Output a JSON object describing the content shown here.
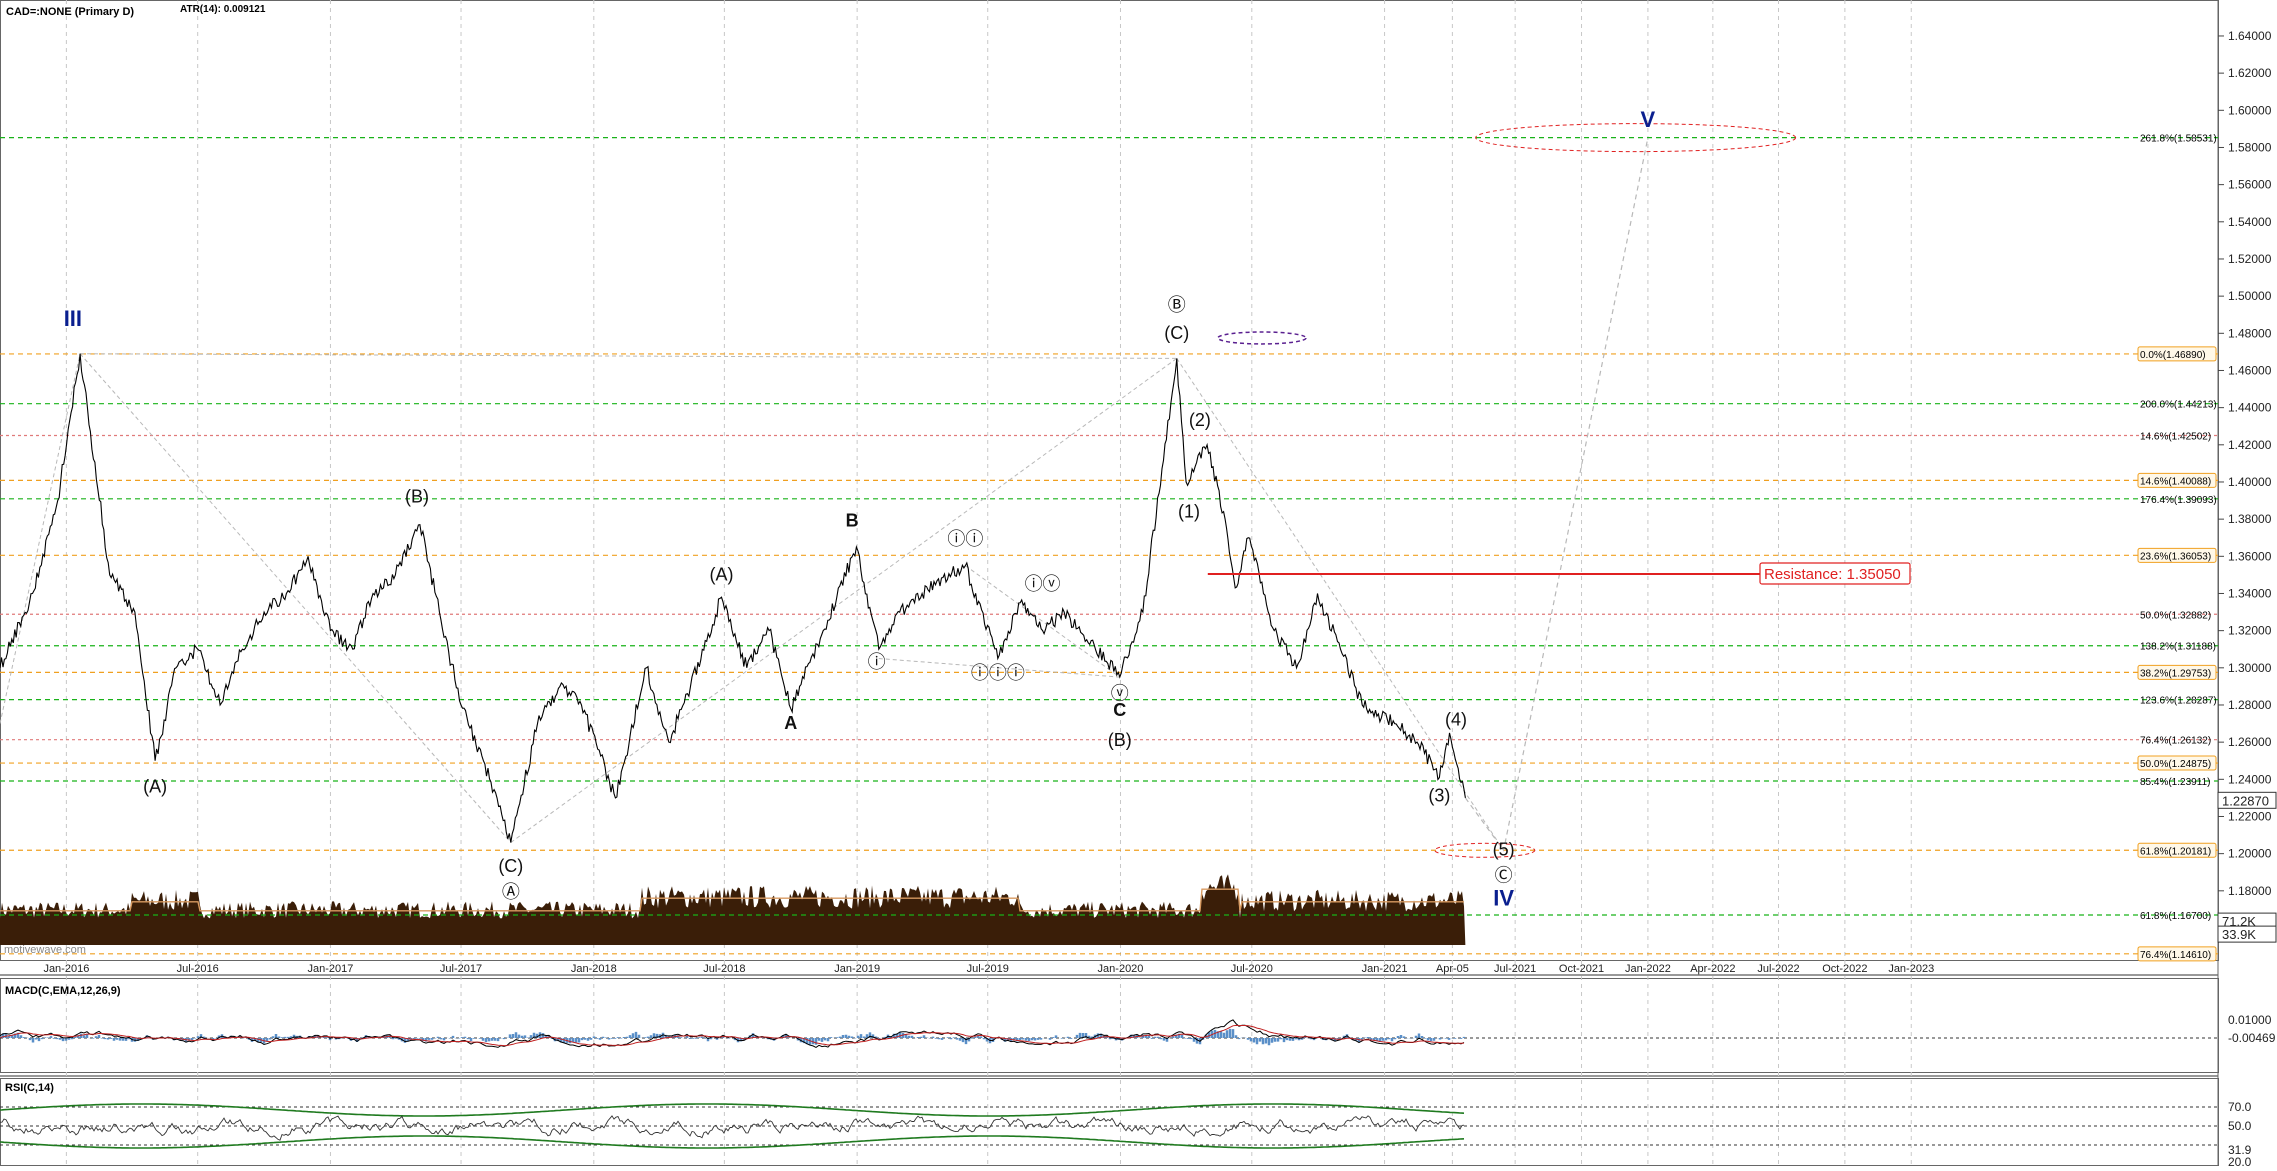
{
  "header": {
    "symbol": "CAD=:NONE (Primary D)",
    "atr": "ATR(14): 0.009121",
    "watermark": "motivewave.com"
  },
  "chart_data": {
    "type": "line",
    "title": "CAD=:NONE (Primary D)",
    "xlabel": "",
    "ylabel": "",
    "ylim": [
      1.146,
      1.66
    ],
    "grid": true,
    "x_ticks": [
      "Jan-2016",
      "Jul-2016",
      "Jan-2017",
      "Jul-2017",
      "Jan-2018",
      "Jul-2018",
      "Jan-2019",
      "Jul-2019",
      "Jan-2020",
      "Jul-2020",
      "Jan-2021",
      "Apr-05",
      "Jul-2021",
      "Oct-2021",
      "Jan-2022",
      "Apr-2022",
      "Jul-2022",
      "Oct-2022",
      "Jan-2023"
    ],
    "y_ticks": [
      "1.64000",
      "1.62000",
      "1.60000",
      "1.58000",
      "1.56000",
      "1.54000",
      "1.52000",
      "1.50000",
      "1.48000",
      "1.46000",
      "1.44000",
      "1.42000",
      "1.40000",
      "1.38000",
      "1.36000",
      "1.34000",
      "1.32000",
      "1.30000",
      "1.28000",
      "1.26000",
      "1.24000",
      "1.22000",
      "1.20000",
      "1.18000"
    ],
    "price_tags": {
      "last": "1.22870",
      "volume": "71.2K",
      "volume_avg": "33.9K"
    },
    "series": [
      {
        "values": [
          {
            "x": "2015-10-01",
            "y": 1.3
          },
          {
            "x": "2015-11-15",
            "y": 1.34
          },
          {
            "x": "2015-12-20",
            "y": 1.39
          },
          {
            "x": "2016-01-20",
            "y": 1.469
          },
          {
            "x": "2016-03-01",
            "y": 1.35
          },
          {
            "x": "2016-04-05",
            "y": 1.33
          },
          {
            "x": "2016-05-03",
            "y": 1.25
          },
          {
            "x": "2016-06-01",
            "y": 1.3
          },
          {
            "x": "2016-07-01",
            "y": 1.31
          },
          {
            "x": "2016-08-01",
            "y": 1.28
          },
          {
            "x": "2016-09-01",
            "y": 1.31
          },
          {
            "x": "2016-10-01",
            "y": 1.33
          },
          {
            "x": "2016-11-01",
            "y": 1.34
          },
          {
            "x": "2016-12-01",
            "y": 1.36
          },
          {
            "x": "2017-01-01",
            "y": 1.32
          },
          {
            "x": "2017-02-01",
            "y": 1.31
          },
          {
            "x": "2017-03-01",
            "y": 1.34
          },
          {
            "x": "2017-04-01",
            "y": 1.35
          },
          {
            "x": "2017-05-05",
            "y": 1.377
          },
          {
            "x": "2017-06-01",
            "y": 1.33
          },
          {
            "x": "2017-07-01",
            "y": 1.28
          },
          {
            "x": "2017-08-01",
            "y": 1.25
          },
          {
            "x": "2017-09-08",
            "y": 1.206
          },
          {
            "x": "2017-10-15",
            "y": 1.27
          },
          {
            "x": "2017-11-15",
            "y": 1.29
          },
          {
            "x": "2017-12-15",
            "y": 1.28
          },
          {
            "x": "2018-01-31",
            "y": 1.23
          },
          {
            "x": "2018-03-15",
            "y": 1.3
          },
          {
            "x": "2018-04-15",
            "y": 1.26
          },
          {
            "x": "2018-05-15",
            "y": 1.29
          },
          {
            "x": "2018-06-27",
            "y": 1.338
          },
          {
            "x": "2018-08-01",
            "y": 1.3
          },
          {
            "x": "2018-09-01",
            "y": 1.32
          },
          {
            "x": "2018-10-01",
            "y": 1.278
          },
          {
            "x": "2018-11-15",
            "y": 1.32
          },
          {
            "x": "2018-12-31",
            "y": 1.365
          },
          {
            "x": "2019-01-31",
            "y": 1.31
          },
          {
            "x": "2019-03-01",
            "y": 1.33
          },
          {
            "x": "2019-04-01",
            "y": 1.34
          },
          {
            "x": "2019-05-31",
            "y": 1.355
          },
          {
            "x": "2019-07-15",
            "y": 1.305
          },
          {
            "x": "2019-08-15",
            "y": 1.335
          },
          {
            "x": "2019-09-15",
            "y": 1.32
          },
          {
            "x": "2019-10-15",
            "y": 1.33
          },
          {
            "x": "2019-12-31",
            "y": 1.295
          },
          {
            "x": "2020-02-01",
            "y": 1.33
          },
          {
            "x": "2020-03-19",
            "y": 1.4665
          },
          {
            "x": "2020-04-01",
            "y": 1.4
          },
          {
            "x": "2020-04-30",
            "y": 1.42
          },
          {
            "x": "2020-05-25",
            "y": 1.38
          },
          {
            "x": "2020-06-08",
            "y": 1.343
          },
          {
            "x": "2020-06-26",
            "y": 1.37
          },
          {
            "x": "2020-08-01",
            "y": 1.32
          },
          {
            "x": "2020-09-01",
            "y": 1.3
          },
          {
            "x": "2020-09-30",
            "y": 1.34
          },
          {
            "x": "2020-11-01",
            "y": 1.31
          },
          {
            "x": "2020-12-01",
            "y": 1.28
          },
          {
            "x": "2021-01-15",
            "y": 1.27
          },
          {
            "x": "2021-02-15",
            "y": 1.26
          },
          {
            "x": "2021-03-18",
            "y": 1.241
          },
          {
            "x": "2021-04-01",
            "y": 1.265
          },
          {
            "x": "2021-04-23",
            "y": 1.23
          }
        ]
      }
    ],
    "projection": [
      {
        "x": "2021-04-23",
        "y": 1.23
      },
      {
        "x": "2021-06-15",
        "y": 1.2018
      },
      {
        "x": "2022-01-01",
        "y": 1.5853
      }
    ],
    "fib_levels": [
      {
        "label": "261.8%(1.58531)",
        "y": 1.58531,
        "color": "#19b219"
      },
      {
        "label": "0.0%(1.46890)",
        "y": 1.4689,
        "color": "#f0a020"
      },
      {
        "label": "200.0%(1.44213)",
        "y": 1.44213,
        "color": "#19b219"
      },
      {
        "label": "14.6%(1.42502)",
        "y": 1.42502,
        "color": "#e07a7a"
      },
      {
        "label": "14.6%(1.40088)",
        "y": 1.40088,
        "color": "#f0a020"
      },
      {
        "label": "176.4%(1.39093)",
        "y": 1.39093,
        "color": "#19b219"
      },
      {
        "label": "23.6%(1.36053)",
        "y": 1.36053,
        "color": "#f0a020"
      },
      {
        "label": "50.0%(1.32882)",
        "y": 1.32882,
        "color": "#e07a7a"
      },
      {
        "label": "138.2%(1.31188)",
        "y": 1.31188,
        "color": "#19b219"
      },
      {
        "label": "38.2%(1.29753)",
        "y": 1.29753,
        "color": "#f0a020"
      },
      {
        "label": "123.6%(1.28287)",
        "y": 1.28287,
        "color": "#19b219"
      },
      {
        "label": "76.4%(1.26132)",
        "y": 1.26132,
        "color": "#e07a7a"
      },
      {
        "label": "50.0%(1.24875)",
        "y": 1.24875,
        "color": "#f0a020"
      },
      {
        "label": "85.4%(1.23911)",
        "y": 1.23911,
        "color": "#19b219"
      },
      {
        "label": "61.8%(1.20181)",
        "y": 1.20181,
        "color": "#f0a020"
      },
      {
        "label": "61.8%(1.16700)",
        "y": 1.167,
        "color": "#19b219"
      },
      {
        "label": "76.4%(1.14610)",
        "y": 1.1461,
        "color": "#f0a020"
      }
    ],
    "resistance": {
      "label": "Resistance: 1.35050",
      "y": 1.3505,
      "from": "2020-05-01",
      "to": "2021-07-25"
    },
    "wave_labels": [
      {
        "text": "III",
        "x": "2016-01-10",
        "y": 1.484,
        "style": "blue"
      },
      {
        "text": "(A)",
        "x": "2016-05-03",
        "y": 1.233,
        "style": "plain"
      },
      {
        "text": "(B)",
        "x": "2017-05-01",
        "y": 1.389,
        "style": "plain"
      },
      {
        "text": "(C)",
        "x": "2017-09-08",
        "y": 1.19,
        "style": "plain"
      },
      {
        "text": "Ⓐ",
        "x": "2017-09-08",
        "y": 1.176,
        "style": "plain"
      },
      {
        "text": "(A)",
        "x": "2018-06-27",
        "y": 1.347,
        "style": "plain"
      },
      {
        "text": "A",
        "x": "2018-10-01",
        "y": 1.267,
        "style": "bold"
      },
      {
        "text": "B",
        "x": "2018-12-25",
        "y": 1.376,
        "style": "bold"
      },
      {
        "text": "ⓘ",
        "x": "2019-01-28",
        "y": 1.3,
        "style": "plain"
      },
      {
        "text": "ⓘⓘ",
        "x": "2019-05-31",
        "y": 1.366,
        "style": "plain"
      },
      {
        "text": "ⓘⓘⓘ",
        "x": "2019-07-15",
        "y": 1.294,
        "style": "plain"
      },
      {
        "text": "ⓘⓥ",
        "x": "2019-09-15",
        "y": 1.342,
        "style": "plain"
      },
      {
        "text": "ⓥ",
        "x": "2019-12-31",
        "y": 1.283,
        "style": "plain"
      },
      {
        "text": "C",
        "x": "2019-12-31",
        "y": 1.274,
        "style": "bold"
      },
      {
        "text": "(B)",
        "x": "2019-12-31",
        "y": 1.258,
        "style": "plain"
      },
      {
        "text": "Ⓑ",
        "x": "2020-03-19",
        "y": 1.492,
        "style": "plain"
      },
      {
        "text": "(C)",
        "x": "2020-03-19",
        "y": 1.477,
        "style": "plain"
      },
      {
        "text": "(2)",
        "x": "2020-04-20",
        "y": 1.43,
        "style": "plain"
      },
      {
        "text": "(1)",
        "x": "2020-04-05",
        "y": 1.381,
        "style": "plain"
      },
      {
        "text": "(4)",
        "x": "2021-04-10",
        "y": 1.269,
        "style": "plain"
      },
      {
        "text": "(3)",
        "x": "2021-03-18",
        "y": 1.228,
        "style": "plain"
      },
      {
        "text": "(5)",
        "x": "2021-06-15",
        "y": 1.199,
        "style": "plain"
      },
      {
        "text": "Ⓒ",
        "x": "2021-06-15",
        "y": 1.185,
        "style": "plain"
      },
      {
        "text": "IV",
        "x": "2021-06-15",
        "y": 1.172,
        "style": "blue"
      },
      {
        "text": "V",
        "x": "2022-01-01",
        "y": 1.591,
        "style": "blue"
      }
    ],
    "indicators": [
      {
        "name": "MACD(C,EMA,12,26,9)",
        "ticks": [
          "0.01000",
          "0.00000"
        ],
        "value": "-0.00469"
      },
      {
        "name": "RSI(C,14)",
        "ticks": [
          "70.0",
          "50.0",
          "31.9",
          "20.0"
        ],
        "value": "50.0"
      }
    ]
  },
  "colors": {
    "price": "#000000",
    "grid": "#c8c8c8",
    "fib_green": "#19b219",
    "fib_orange": "#f0a020",
    "fib_red": "#e07a7a",
    "resistance": "#e02020",
    "volume": "#3a1e08",
    "volume_ma": "#d89a60",
    "wave_blue": "#0a1f8f",
    "macd": "#000000",
    "macd_signal": "#c02020",
    "macd_hist": "#5a8fc8",
    "rsi": "#333333",
    "rsi_band": "#1f7a1f"
  }
}
